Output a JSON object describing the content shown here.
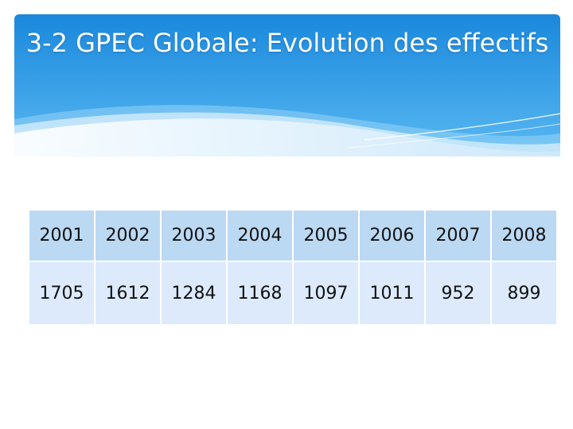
{
  "slide": {
    "title": "3-2 GPEC Globale: Evolution des effectifs"
  },
  "table": {
    "years": [
      "2001",
      "2002",
      "2003",
      "2004",
      "2005",
      "2006",
      "2007",
      "2008"
    ],
    "values": [
      "1705",
      "1612",
      "1284",
      "1168",
      "1097",
      "1011",
      "952",
      "899"
    ]
  },
  "colors": {
    "banner_top": "#1e8ee0",
    "banner_bottom": "#4db4f0",
    "header_row": "#bcd9f3",
    "value_row": "#dceafb"
  }
}
